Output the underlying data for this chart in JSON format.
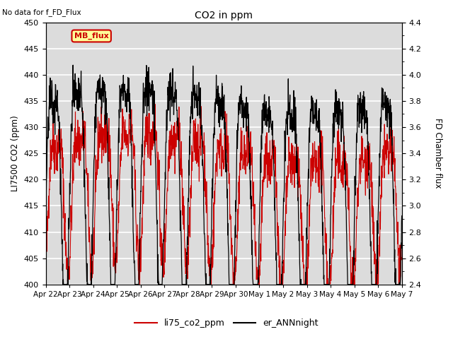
{
  "title": "CO2 in ppm",
  "subtitle": "No data for f_FD_Flux",
  "ylabel_left": "LI7500 CO2 (ppm)",
  "ylabel_right": "FD Chamber flux",
  "ylim_left": [
    400,
    450
  ],
  "ylim_right": [
    2.4,
    4.4
  ],
  "yticks_left": [
    400,
    405,
    410,
    415,
    420,
    425,
    430,
    435,
    440,
    445,
    450
  ],
  "yticks_right": [
    2.4,
    2.6,
    2.8,
    3.0,
    3.2,
    3.4,
    3.6,
    3.8,
    4.0,
    4.2,
    4.4
  ],
  "xtick_labels": [
    "Apr 22",
    "Apr 23",
    "Apr 24",
    "Apr 25",
    "Apr 26",
    "Apr 27",
    "Apr 28",
    "Apr 29",
    "Apr 30",
    "May 1",
    "May 2",
    "May 3",
    "May 4",
    "May 5",
    "May 6",
    "May 7"
  ],
  "legend_entries": [
    "li75_co2_ppm",
    "er_ANNnight"
  ],
  "legend_colors": [
    "#cc0000",
    "#000000"
  ],
  "line1_color": "#cc0000",
  "line2_color": "#000000",
  "annotation_text": "MB_flux",
  "annotation_color": "#cc0000",
  "annotation_bg": "#ffff99",
  "annotation_border": "#cc0000",
  "background_color": "#dcdcdc",
  "grid_color": "#ffffff",
  "n_points": 1500,
  "seed": 42
}
